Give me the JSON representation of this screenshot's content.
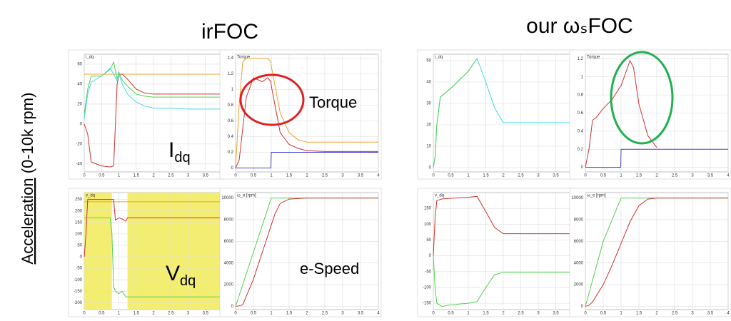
{
  "slide": {
    "left_title": "irFOC",
    "right_title": "our ωₛFOC",
    "side_label": {
      "underlined": "Acceleration",
      "rest": " (0-10k rpm)"
    },
    "labels": {
      "idq": {
        "main": "I",
        "sub": "dq"
      },
      "torque": "Torque",
      "vdq": {
        "main": "V",
        "sub": "dq"
      },
      "speed": "e-Speed"
    }
  },
  "chart_data": [
    {
      "type": "line",
      "ylabel": "i_dq",
      "grid": true,
      "x": [
        0,
        0.1,
        0.2,
        0.5,
        0.75,
        0.85,
        0.95,
        1,
        1.1,
        1.25,
        1.5,
        1.75,
        2,
        2.5,
        3,
        4
      ],
      "xlim": [
        0,
        4
      ],
      "xticks": [
        0,
        0.5,
        1,
        1.5,
        2,
        2.5,
        3,
        3.5,
        4
      ],
      "ylim": [
        -48,
        70
      ],
      "yticks": [
        -40,
        -20,
        0,
        20,
        40,
        60
      ],
      "series": [
        {
          "color": "#f0a030",
          "values": [
            50,
            50,
            50,
            50,
            50,
            50,
            50,
            50,
            50,
            50,
            50,
            50,
            50,
            50,
            50,
            50
          ]
        },
        {
          "color": "#d03030",
          "values": [
            0,
            -10,
            -38,
            -42,
            -43,
            -42,
            40,
            50,
            50,
            45,
            35,
            31,
            30,
            30,
            30,
            30
          ]
        },
        {
          "color": "#50d050",
          "values": [
            10,
            35,
            48,
            48,
            55,
            62,
            45,
            52,
            44,
            38,
            30,
            28,
            27,
            27,
            27,
            27
          ]
        },
        {
          "color": "#40d8e8",
          "values": [
            5,
            30,
            42,
            48,
            56,
            50,
            43,
            50,
            40,
            30,
            22,
            18,
            16,
            16,
            15,
            15
          ]
        }
      ]
    },
    {
      "type": "line",
      "ylabel": "Torque",
      "grid": true,
      "x": [
        0,
        0.1,
        0.2,
        0.3,
        0.5,
        0.75,
        0.9,
        0.99,
        1,
        1.25,
        1.5,
        1.75,
        2,
        2.5,
        3,
        4
      ],
      "xlim": [
        0,
        4
      ],
      "xticks": [
        0,
        0.5,
        1,
        1.5,
        2,
        2.5,
        3,
        3.5,
        4
      ],
      "ylim": [
        -0.05,
        1.45
      ],
      "yticks": [
        0,
        0.2,
        0.4,
        0.6,
        0.8,
        1,
        1.2,
        1.4
      ],
      "series": [
        {
          "color": "#f0a030",
          "values": [
            0,
            0.8,
            1.35,
            1.4,
            1.4,
            1.4,
            1.4,
            1.35,
            1.3,
            0.7,
            0.45,
            0.36,
            0.33,
            0.33,
            0.33,
            0.33
          ]
        },
        {
          "color": "#d03030",
          "values": [
            0,
            0.1,
            0.5,
            0.9,
            1.15,
            1.1,
            1.15,
            1.1,
            1.05,
            0.45,
            0.3,
            0.25,
            0.22,
            0.21,
            0.21,
            0.21
          ]
        },
        {
          "color": "#4040d0",
          "values": [
            0,
            0,
            0,
            0,
            0,
            0,
            0,
            0,
            0.2,
            0.2,
            0.2,
            0.2,
            0.2,
            0.2,
            0.2,
            0.2
          ]
        }
      ]
    },
    {
      "type": "line",
      "ylabel": "v_dq",
      "grid": true,
      "x": [
        0,
        0.05,
        0.1,
        0.2,
        0.5,
        0.75,
        0.8,
        0.85,
        0.9,
        1,
        1.1,
        1.2,
        1.25,
        1.5,
        2,
        4
      ],
      "xlim": [
        0,
        4
      ],
      "xticks": [
        0,
        0.5,
        1,
        1.5,
        2,
        2.5,
        3,
        3.5,
        4
      ],
      "ylim": [
        -230,
        280
      ],
      "yticks": [
        -200,
        -150,
        -100,
        -50,
        0,
        50,
        100,
        150,
        200,
        250
      ],
      "spans": {
        "color": "#f4ee70",
        "x": [
          [
            0,
            0.8
          ],
          [
            1.25,
            4
          ]
        ]
      },
      "series": [
        {
          "color": "#f0a030",
          "values": [
            240,
            240,
            240,
            240,
            240,
            240,
            240,
            240,
            240,
            240,
            240,
            240,
            240,
            240,
            240,
            240
          ]
        },
        {
          "color": "#d03030",
          "values": [
            0,
            100,
            250,
            250,
            250,
            250,
            250,
            250,
            160,
            170,
            165,
            155,
            170,
            170,
            170,
            170
          ]
        },
        {
          "color": "#50d050",
          "values": [
            170,
            170,
            170,
            170,
            170,
            170,
            100,
            -130,
            -150,
            -160,
            -150,
            -175,
            -175,
            -175,
            -175,
            -175
          ]
        }
      ]
    },
    {
      "type": "line",
      "ylabel": "ω_e [rpm]",
      "grid": true,
      "x": [
        0,
        0.1,
        0.2,
        0.5,
        0.75,
        1,
        1.1,
        1.25,
        1.5,
        2,
        3,
        4
      ],
      "xlim": [
        0,
        4
      ],
      "xticks": [
        0,
        0.5,
        1,
        1.5,
        2,
        2.5,
        3,
        3.5,
        4
      ],
      "ylim": [
        -300,
        10500
      ],
      "yticks": [
        0,
        2000,
        4000,
        6000,
        8000,
        10000
      ],
      "series": [
        {
          "color": "#50d050",
          "values": [
            0,
            1000,
            2000,
            5000,
            7500,
            10000,
            10000,
            10000,
            10000,
            10000,
            10000,
            10000
          ]
        },
        {
          "color": "#d03030",
          "values": [
            0,
            50,
            150,
            2500,
            5000,
            7500,
            8500,
            9500,
            9900,
            10000,
            10000,
            10000
          ]
        }
      ]
    },
    {
      "type": "line",
      "ylabel": "i_dq",
      "grid": true,
      "x": [
        0,
        0.05,
        0.1,
        0.2,
        0.5,
        1,
        1.25,
        1.5,
        1.75,
        2,
        2.5,
        4
      ],
      "xlim": [
        0,
        4
      ],
      "xticks": [
        0,
        0.5,
        1,
        1.5,
        2,
        2.5,
        3,
        3.5,
        4
      ],
      "ylim": [
        -2,
        53
      ],
      "yticks": [
        0,
        10,
        20,
        30,
        40,
        50
      ],
      "series": [
        {
          "color": "#40d8e8",
          "values": [
            0,
            5,
            20,
            33,
            37,
            45,
            51,
            40,
            28,
            21,
            21,
            21
          ]
        },
        {
          "color": "#50d050",
          "values": [
            0,
            5,
            20,
            33,
            37,
            45,
            51,
            null,
            null,
            null,
            null,
            null
          ]
        }
      ]
    },
    {
      "type": "line",
      "ylabel": "Torque",
      "grid": true,
      "x": [
        0,
        0.1,
        0.2,
        0.3,
        0.5,
        0.75,
        0.99,
        1,
        1.25,
        1.35,
        1.5,
        1.75,
        2,
        2.5,
        4
      ],
      "xlim": [
        0,
        4
      ],
      "xticks": [
        0,
        0.5,
        1,
        1.5,
        2,
        2.5,
        3,
        3.5,
        4
      ],
      "ylim": [
        -0.05,
        1.25
      ],
      "yticks": [
        0,
        0.2,
        0.4,
        0.6,
        0.8,
        1,
        1.2
      ],
      "series": [
        {
          "color": "#4040d0",
          "values": [
            0,
            0,
            0,
            0,
            0,
            0,
            0,
            0.2,
            0.2,
            0.2,
            0.2,
            0.2,
            0.2,
            0.2,
            0.2
          ]
        },
        {
          "color": "#d03030",
          "values": [
            0,
            0.2,
            0.52,
            0.55,
            0.65,
            0.75,
            0.9,
            0.9,
            1.18,
            1.1,
            0.7,
            0.35,
            0.22,
            null,
            null
          ]
        }
      ]
    },
    {
      "type": "line",
      "ylabel": "v_dq",
      "grid": true,
      "x": [
        0,
        0.05,
        0.1,
        0.25,
        0.5,
        1,
        1.25,
        1.5,
        1.75,
        2,
        2.5,
        4
      ],
      "xlim": [
        0,
        4
      ],
      "xticks": [
        0,
        0.5,
        1,
        1.5,
        2,
        2.5,
        3,
        3.5,
        4
      ],
      "ylim": [
        -170,
        200
      ],
      "yticks": [
        -150,
        -100,
        -50,
        0,
        50,
        100,
        150
      ],
      "series": [
        {
          "color": "#d03030",
          "values": [
            0,
            120,
            175,
            180,
            182,
            185,
            188,
            140,
            90,
            70,
            70,
            70
          ]
        },
        {
          "color": "#50d050",
          "values": [
            0,
            -100,
            -150,
            -160,
            -155,
            -150,
            -145,
            -100,
            -60,
            -52,
            -52,
            -52
          ]
        }
      ]
    },
    {
      "type": "line",
      "ylabel": "ω_e [rpm]",
      "grid": true,
      "x": [
        0,
        0.1,
        0.2,
        0.5,
        0.75,
        1,
        1.25,
        1.5,
        1.75,
        2,
        3,
        4
      ],
      "xlim": [
        0,
        4
      ],
      "xticks": [
        0,
        0.5,
        1,
        1.5,
        2,
        2.5,
        3,
        3.5,
        4
      ],
      "ylim": [
        -300,
        10500
      ],
      "yticks": [
        0,
        2000,
        4000,
        6000,
        8000,
        10000
      ],
      "series": [
        {
          "color": "#50d050",
          "values": [
            0,
            1200,
            2400,
            6000,
            8000,
            10000,
            10000,
            10000,
            10000,
            10000,
            10000,
            10000
          ]
        },
        {
          "color": "#d03030",
          "values": [
            0,
            100,
            400,
            2000,
            3800,
            5800,
            7800,
            9300,
            9900,
            10000,
            10000,
            10000
          ]
        }
      ]
    }
  ]
}
